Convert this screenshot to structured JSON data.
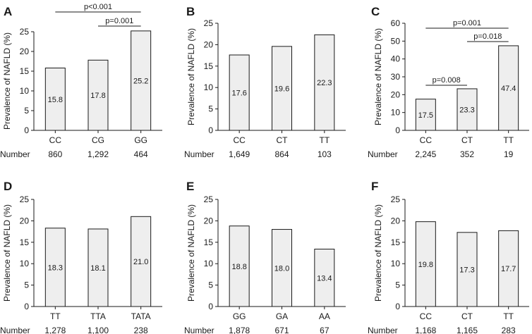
{
  "number_label": "Number",
  "chart_data": [
    {
      "panel": "A",
      "type": "bar",
      "ylabel": "Prevalence of NAFLD (%)",
      "ylim": [
        0,
        25
      ],
      "yticks": [
        0,
        5,
        10,
        15,
        20,
        25
      ],
      "categories": [
        "CC",
        "CG",
        "GG"
      ],
      "values": [
        15.8,
        17.8,
        25.2
      ],
      "value_labels": [
        "15.8",
        "17.8",
        "25.2"
      ],
      "counts": [
        "860",
        "1,292",
        "464"
      ],
      "comparisons": [
        {
          "from": 0,
          "to": 2,
          "label": "p<0.001"
        },
        {
          "from": 1,
          "to": 2,
          "label": "p=0.001"
        }
      ]
    },
    {
      "panel": "B",
      "type": "bar",
      "ylabel": "Prevalence of NAFLD (%)",
      "ylim": [
        0,
        25
      ],
      "yticks": [
        0,
        5,
        10,
        15,
        20,
        25
      ],
      "categories": [
        "CC",
        "CT",
        "TT"
      ],
      "values": [
        17.6,
        19.6,
        22.3
      ],
      "value_labels": [
        "17.6",
        "19.6",
        "22.3"
      ],
      "counts": [
        "1,649",
        "864",
        "103"
      ],
      "comparisons": []
    },
    {
      "panel": "C",
      "type": "bar",
      "ylabel": "Prevalence of NAFLD (%)",
      "ylim": [
        0,
        60
      ],
      "yticks": [
        0,
        10,
        20,
        30,
        40,
        50,
        60
      ],
      "categories": [
        "CC",
        "CT",
        "TT"
      ],
      "values": [
        17.5,
        23.3,
        47.4
      ],
      "value_labels": [
        "17.5",
        "23.3",
        "47.4"
      ],
      "counts": [
        "2,245",
        "352",
        "19"
      ],
      "comparisons": [
        {
          "from": 0,
          "to": 2,
          "label": "p=0.001"
        },
        {
          "from": 1,
          "to": 2,
          "label": "p=0.018"
        },
        {
          "from": 0,
          "to": 1,
          "label": "p=0.008"
        }
      ]
    },
    {
      "panel": "D",
      "type": "bar",
      "ylabel": "Prevalence of NAFLD (%)",
      "ylim": [
        0,
        25
      ],
      "yticks": [
        0,
        5,
        10,
        15,
        20,
        25
      ],
      "categories": [
        "TT",
        "TTA",
        "TATA"
      ],
      "values": [
        18.3,
        18.1,
        21.0
      ],
      "value_labels": [
        "18.3",
        "18.1",
        "21.0"
      ],
      "counts": [
        "1,278",
        "1,100",
        "238"
      ],
      "comparisons": []
    },
    {
      "panel": "E",
      "type": "bar",
      "ylabel": "Prevalence of NAFLD (%)",
      "ylim": [
        0,
        25
      ],
      "yticks": [
        0,
        5,
        10,
        15,
        20,
        25
      ],
      "categories": [
        "GG",
        "GA",
        "AA"
      ],
      "values": [
        18.8,
        18.0,
        13.4
      ],
      "value_labels": [
        "18.8",
        "18.0",
        "13.4"
      ],
      "counts": [
        "1,878",
        "671",
        "67"
      ],
      "comparisons": []
    },
    {
      "panel": "F",
      "type": "bar",
      "ylabel": "Prevalence of NAFLD (%)",
      "ylim": [
        0,
        25
      ],
      "yticks": [
        0,
        5,
        10,
        15,
        20,
        25
      ],
      "categories": [
        "CC",
        "CT",
        "TT"
      ],
      "values": [
        19.8,
        17.3,
        17.7
      ],
      "value_labels": [
        "19.8",
        "17.3",
        "17.7"
      ],
      "counts": [
        "1,168",
        "1,165",
        "283"
      ],
      "comparisons": []
    }
  ]
}
